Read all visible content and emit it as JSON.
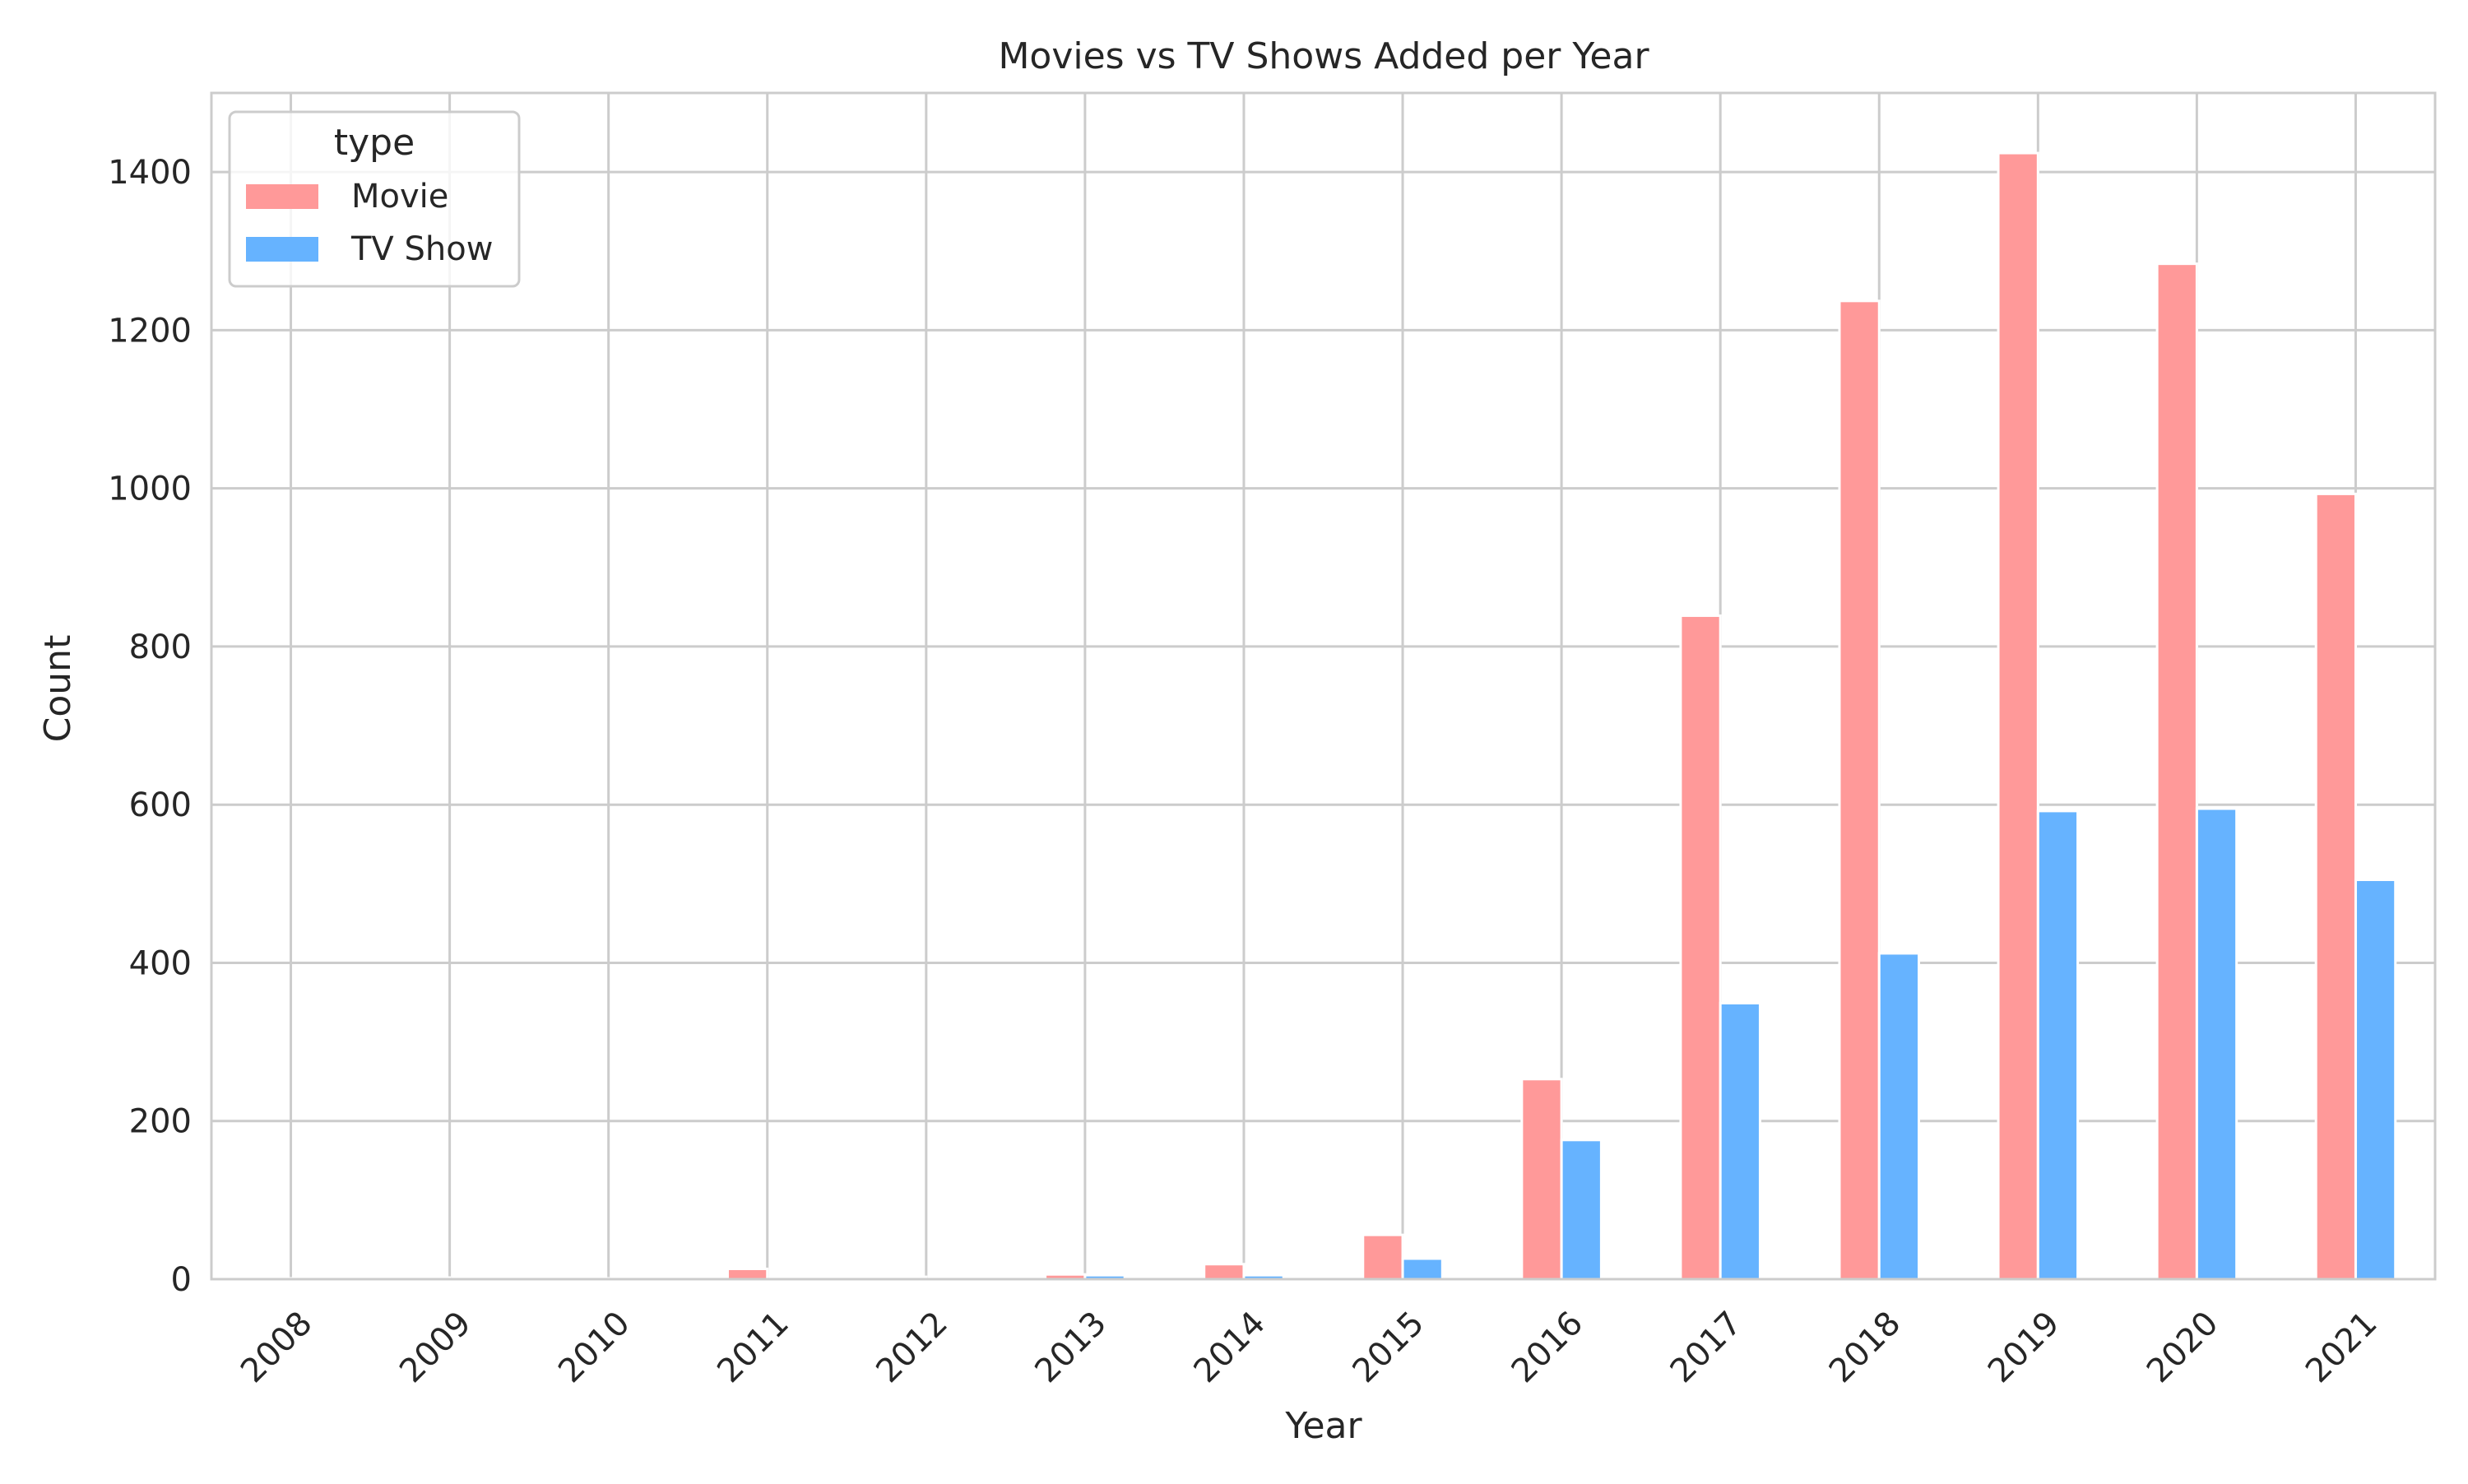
{
  "chart_data": {
    "type": "bar",
    "title": "Movies vs TV Shows Added per Year",
    "xlabel": "Year",
    "ylabel": "Count",
    "categories": [
      "2008",
      "2009",
      "2010",
      "2011",
      "2012",
      "2013",
      "2014",
      "2015",
      "2016",
      "2017",
      "2018",
      "2019",
      "2020",
      "2021"
    ],
    "series": [
      {
        "name": "Movie",
        "color": "#ff9999",
        "values": [
          1,
          2,
          1,
          13,
          3,
          6,
          19,
          56,
          253,
          839,
          1237,
          1424,
          1284,
          993
        ]
      },
      {
        "name": "TV Show",
        "color": "#66b3ff",
        "values": [
          1,
          0,
          0,
          0,
          0,
          5,
          5,
          26,
          176,
          349,
          412,
          592,
          595,
          505
        ]
      }
    ],
    "ylim": [
      0,
      1500
    ],
    "yticks": [
      0,
      200,
      400,
      600,
      800,
      1000,
      1200,
      1400
    ],
    "grid": true,
    "legend": {
      "title": "type",
      "placement": "top-left"
    }
  }
}
